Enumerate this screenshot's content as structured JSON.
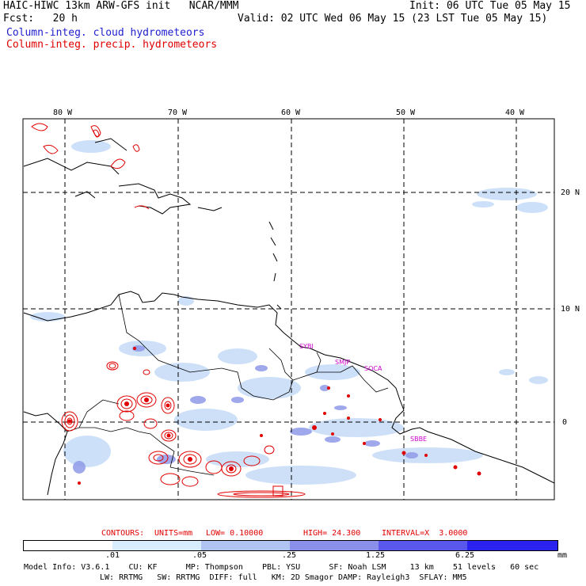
{
  "header": {
    "model_line": "HAIC-HIWC 13km ARW-GFS init   NCAR/MMM",
    "init_line": "Init: 06 UTC Tue 05 May 15",
    "fcst_line": "Fcst:   20 h",
    "valid_line": "Valid: 02 UTC Wed 06 May 15 (23 LST Tue 05 May 15)",
    "field_cloud": "Column-integ. cloud hydrometeors",
    "field_precip": "Column-integ. precip. hydrometeors"
  },
  "map": {
    "lon_labels": [
      "80 W",
      "70 W",
      "60 W",
      "50 W",
      "40 W"
    ],
    "lat_labels": [
      "20 N",
      "10 N",
      "0"
    ],
    "stations": [
      "SYBI",
      "SMJP",
      "SOCA",
      "SBBE"
    ]
  },
  "contour_info": {
    "contours": "CONTOURS:",
    "units": "UNITS=mm",
    "low": "LOW= 0.10000",
    "high": "HIGH= 24.300",
    "interval": "INTERVAL=X  3.0000"
  },
  "colorbar": {
    "ticks": [
      ".01",
      ".05",
      ".25",
      "1.25",
      "6.25"
    ],
    "units": "mm",
    "colors": [
      "#ffffff",
      "#d8eefc",
      "#b0c4f2",
      "#8a90ea",
      "#5a58ec",
      "#2a22ee",
      "#0b00f0"
    ]
  },
  "footer": {
    "line1": "Model Info: V3.6.1    CU: KF      MP: Thompson    PBL: YSU      SF: Noah LSM     13 km    51 levels   60 sec",
    "line2": "LW: RRTMG   SW: RRTMG  DIFF: full   KM: 2D Smagor DAMP: Rayleigh3  SFLAY: MM5"
  }
}
